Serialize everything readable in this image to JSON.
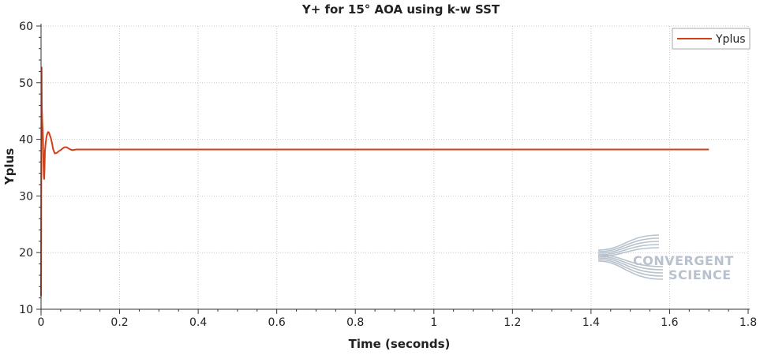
{
  "chart_data": {
    "type": "line",
    "title": "Y+ for 15° AOA using k-w SST",
    "xlabel": "Time (seconds)",
    "ylabel": "Yplus",
    "xlim": [
      0,
      1.8
    ],
    "ylim": [
      10,
      60
    ],
    "xticks": [
      0,
      0.2,
      0.4,
      0.6,
      0.8,
      1,
      1.2,
      1.4,
      1.6,
      1.8
    ],
    "yticks": [
      10,
      20,
      30,
      40,
      50,
      60
    ],
    "xtick_labels": [
      "0",
      "0.2",
      "0.4",
      "0.6",
      "0.8",
      "1",
      "1.2",
      "1.4",
      "1.6",
      "1.8"
    ],
    "ytick_labels": [
      "10",
      "20",
      "30",
      "40",
      "50",
      "60"
    ],
    "grid": true,
    "legend_position": "top-right",
    "series": [
      {
        "name": "Yplus",
        "color": "#d2401a",
        "x": [
          0.0,
          0.0005,
          0.001,
          0.0015,
          0.002,
          0.003,
          0.004,
          0.005,
          0.006,
          0.007,
          0.008,
          0.009,
          0.01,
          0.012,
          0.014,
          0.016,
          0.018,
          0.02,
          0.022,
          0.025,
          0.028,
          0.031,
          0.035,
          0.04,
          0.045,
          0.05,
          0.055,
          0.06,
          0.065,
          0.07,
          0.075,
          0.08,
          0.09,
          0.1,
          0.15,
          0.2,
          0.3,
          0.4,
          0.5,
          0.6,
          0.7,
          0.8,
          0.9,
          1.0,
          1.1,
          1.2,
          1.3,
          1.4,
          1.5,
          1.6,
          1.7
        ],
        "y": [
          12.3,
          30.0,
          45.0,
          52.7,
          46.0,
          43.5,
          42.0,
          40.0,
          36.0,
          33.5,
          33.0,
          35.0,
          38.0,
          39.5,
          40.5,
          41.0,
          41.3,
          41.2,
          40.8,
          40.2,
          39.3,
          38.2,
          37.5,
          37.6,
          37.9,
          38.1,
          38.4,
          38.6,
          38.6,
          38.4,
          38.2,
          38.1,
          38.2,
          38.2,
          38.2,
          38.2,
          38.2,
          38.2,
          38.2,
          38.2,
          38.2,
          38.2,
          38.2,
          38.2,
          38.2,
          38.2,
          38.2,
          38.2,
          38.2,
          38.2,
          38.2
        ]
      }
    ]
  },
  "logo": {
    "line1": "CONVERGENT",
    "line2": "SCIENCE",
    "color": "#b8c2cc"
  }
}
